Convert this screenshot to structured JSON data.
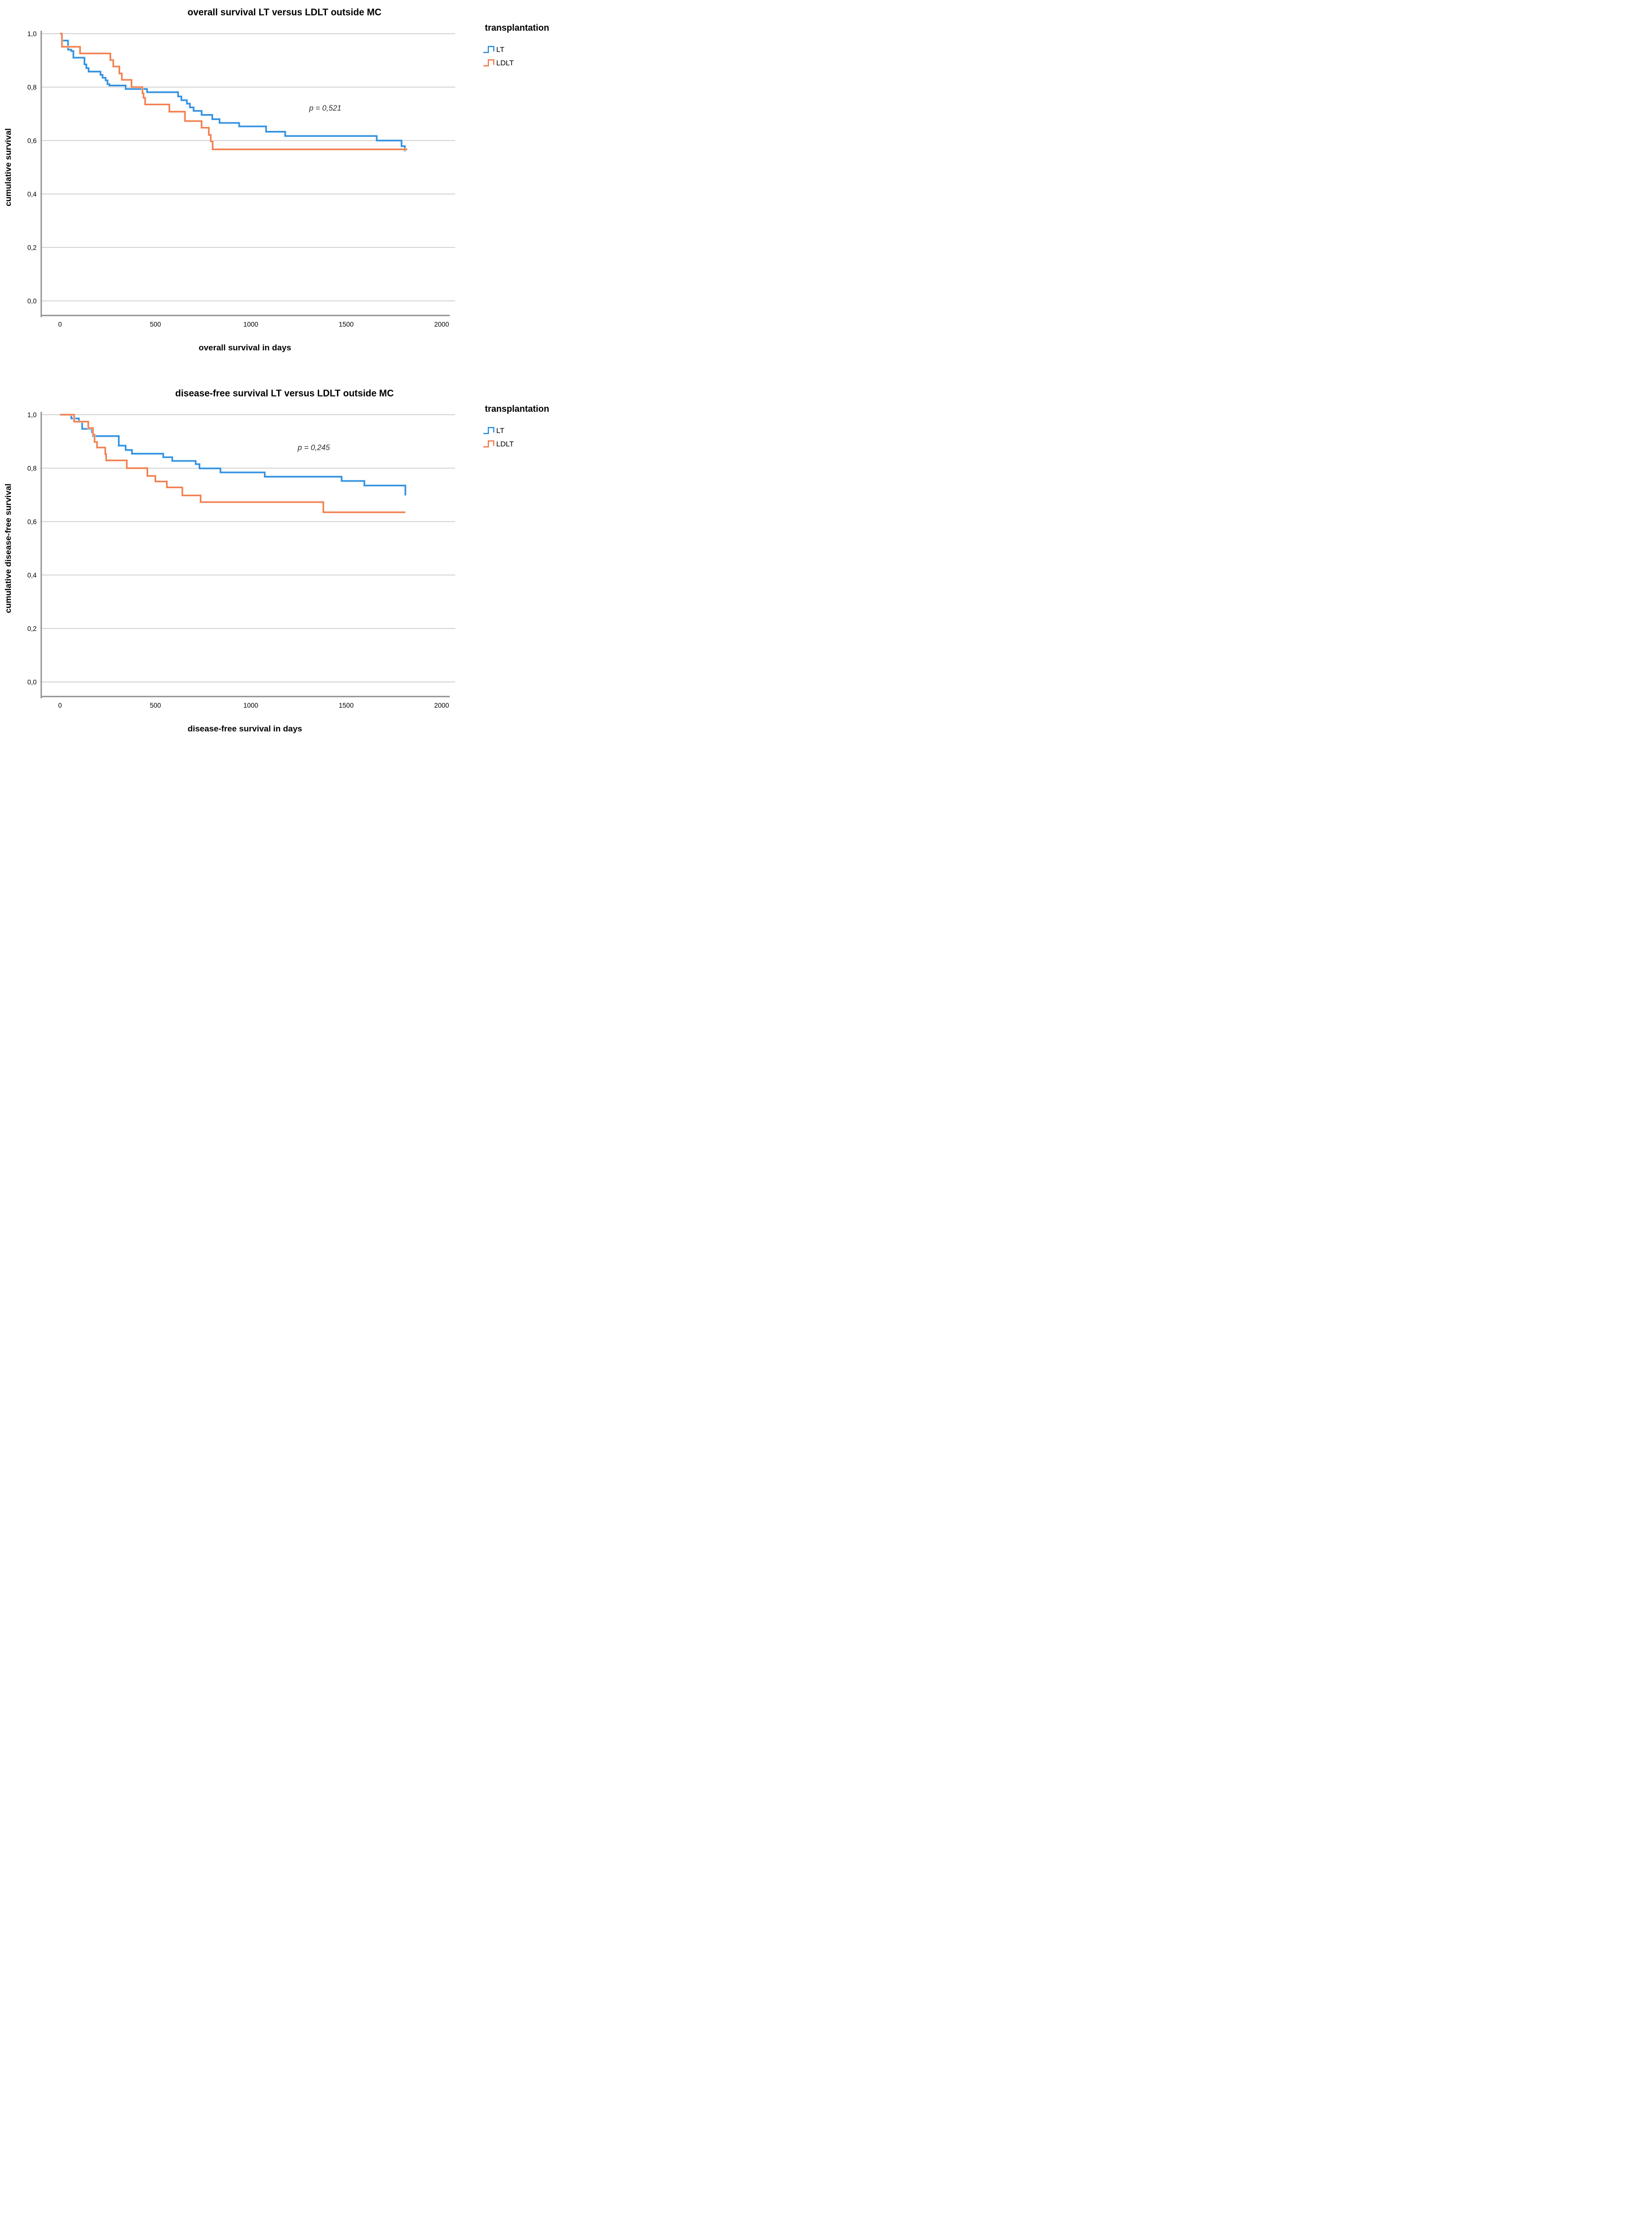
{
  "page": {
    "background": "#ffffff"
  },
  "legend": {
    "title": "transplantation",
    "entries": [
      {
        "label": "LT",
        "series": "LT"
      },
      {
        "label": "LDLT",
        "series": "LDLT"
      }
    ]
  },
  "chart_data": [
    {
      "type": "line",
      "step": true,
      "title": "overall survival LT versus LDLT outside MC",
      "xlabel": "overall survival in days",
      "ylabel": "cumulative survival",
      "xlim": [
        0,
        2100
      ],
      "ylim": [
        0,
        1
      ],
      "grid": "horizontal",
      "legend_position": "right-top",
      "xticks": [
        {
          "v": 0,
          "label": "0"
        },
        {
          "v": 500,
          "label": "500"
        },
        {
          "v": 1000,
          "label": "1000"
        },
        {
          "v": 1500,
          "label": "1500"
        },
        {
          "v": 2000,
          "label": "2000"
        }
      ],
      "yticks": [
        {
          "v": 1.0,
          "label": "1,0"
        },
        {
          "v": 0.8,
          "label": "0,8"
        },
        {
          "v": 0.6,
          "label": "0,6"
        },
        {
          "v": 0.4,
          "label": "0,4"
        },
        {
          "v": 0.2,
          "label": "0,2"
        },
        {
          "v": 0.0,
          "label": "0,0"
        }
      ],
      "annotation": {
        "text": "p = 0,521",
        "x_day": 1390,
        "y_survival": 0.712
      },
      "series": [
        {
          "name": "LT",
          "color": "#2186DC",
          "halo": "#A9D4F4",
          "points": [
            [
              0,
              1.0
            ],
            [
              10,
              0.974
            ],
            [
              42,
              0.94
            ],
            [
              59,
              0.935
            ],
            [
              70,
              0.91
            ],
            [
              128,
              0.885
            ],
            [
              138,
              0.871
            ],
            [
              150,
              0.858
            ],
            [
              212,
              0.846
            ],
            [
              223,
              0.835
            ],
            [
              239,
              0.825
            ],
            [
              249,
              0.811
            ],
            [
              259,
              0.806
            ],
            [
              344,
              0.793
            ],
            [
              456,
              0.781
            ],
            [
              619,
              0.765
            ],
            [
              636,
              0.751
            ],
            [
              665,
              0.738
            ],
            [
              681,
              0.724
            ],
            [
              700,
              0.711
            ],
            [
              742,
              0.696
            ],
            [
              798,
              0.68
            ],
            [
              836,
              0.666
            ],
            [
              939,
              0.653
            ],
            [
              1080,
              0.633
            ],
            [
              1180,
              0.617
            ],
            [
              1660,
              0.6
            ],
            [
              1790,
              0.579
            ],
            [
              1807,
              0.56
            ]
          ]
        },
        {
          "name": "LDLT",
          "color": "#F0713F",
          "halo": "#FAD2BC",
          "points": [
            [
              0,
              1.0
            ],
            [
              10,
              0.951
            ],
            [
              105,
              0.926
            ],
            [
              264,
              0.901
            ],
            [
              279,
              0.877
            ],
            [
              311,
              0.851
            ],
            [
              324,
              0.827
            ],
            [
              375,
              0.8
            ],
            [
              432,
              0.777
            ],
            [
              438,
              0.76
            ],
            [
              446,
              0.735
            ],
            [
              573,
              0.708
            ],
            [
              655,
              0.673
            ],
            [
              742,
              0.648
            ],
            [
              780,
              0.621
            ],
            [
              790,
              0.597
            ],
            [
              800,
              0.567
            ],
            [
              1820,
              0.567
            ]
          ]
        }
      ]
    },
    {
      "type": "line",
      "step": true,
      "title": "disease-free survival LT versus LDLT outside MC",
      "xlabel": "disease-free survival in days",
      "ylabel": "cumulative disease-free survival",
      "xlim": [
        0,
        2100
      ],
      "ylim": [
        0,
        1
      ],
      "grid": "horizontal",
      "legend_position": "right-top",
      "xticks": [
        {
          "v": 0,
          "label": "0"
        },
        {
          "v": 500,
          "label": "500"
        },
        {
          "v": 1000,
          "label": "1000"
        },
        {
          "v": 1500,
          "label": "1500"
        },
        {
          "v": 2000,
          "label": "2000"
        }
      ],
      "yticks": [
        {
          "v": 1.0,
          "label": "1,0"
        },
        {
          "v": 0.8,
          "label": "0,8"
        },
        {
          "v": 0.6,
          "label": "0,6"
        },
        {
          "v": 0.4,
          "label": "0,4"
        },
        {
          "v": 0.2,
          "label": "0,2"
        },
        {
          "v": 0.0,
          "label": "0,0"
        }
      ],
      "annotation": {
        "text": "p = 0,245",
        "x_day": 1330,
        "y_survival": 0.868
      },
      "series": [
        {
          "name": "LT",
          "color": "#2186DC",
          "halo": "#A9D4F4",
          "points": [
            [
              0,
              1.0
            ],
            [
              59,
              0.986
            ],
            [
              99,
              0.973
            ],
            [
              116,
              0.947
            ],
            [
              167,
              0.934
            ],
            [
              173,
              0.92
            ],
            [
              308,
              0.884
            ],
            [
              344,
              0.868
            ],
            [
              377,
              0.854
            ],
            [
              541,
              0.841
            ],
            [
              588,
              0.827
            ],
            [
              711,
              0.815
            ],
            [
              731,
              0.799
            ],
            [
              841,
              0.784
            ],
            [
              1073,
              0.768
            ],
            [
              1476,
              0.752
            ],
            [
              1595,
              0.735
            ],
            [
              1810,
              0.698
            ]
          ]
        },
        {
          "name": "LDLT",
          "color": "#F0713F",
          "halo": "#FAD2BC",
          "points": [
            [
              0,
              1.0
            ],
            [
              74,
              0.974
            ],
            [
              148,
              0.95
            ],
            [
              173,
              0.925
            ],
            [
              181,
              0.898
            ],
            [
              194,
              0.877
            ],
            [
              237,
              0.853
            ],
            [
              242,
              0.829
            ],
            [
              350,
              0.8
            ],
            [
              458,
              0.771
            ],
            [
              500,
              0.75
            ],
            [
              560,
              0.728
            ],
            [
              641,
              0.698
            ],
            [
              737,
              0.673
            ],
            [
              1380,
              0.635
            ],
            [
              1810,
              0.635
            ]
          ]
        }
      ]
    }
  ]
}
